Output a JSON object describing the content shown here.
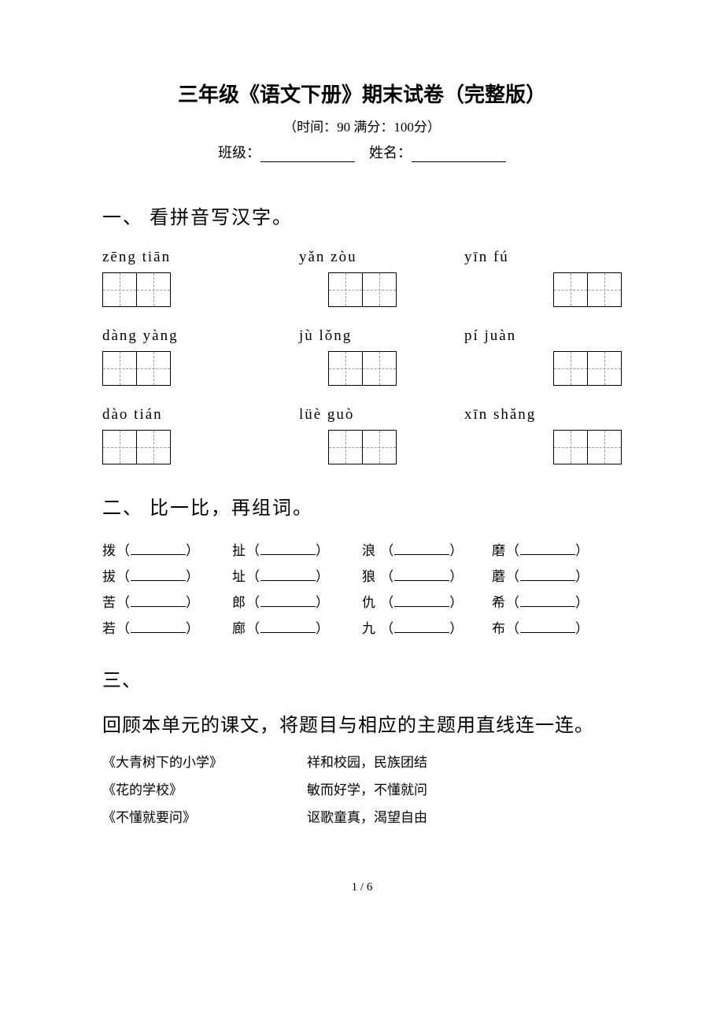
{
  "title": "三年级《语文下册》期末试卷（完整版）",
  "subtitle": "（时间：90   满分：100分）",
  "info": {
    "class_label": "班级：",
    "name_label": "姓名："
  },
  "section1": {
    "heading": "一、  看拼音写汉字。",
    "rows": [
      {
        "p1": "zēng  tiān",
        "p2": "yǎn  zòu",
        "p3": "yīn   fú"
      },
      {
        "p1": "dàng  yàng",
        "p2": "jù   lǒng",
        "p3": "pí   juàn"
      },
      {
        "p1": "dào   tián",
        "p2": "lüè  guò",
        "p3": "xīn  shǎng"
      }
    ]
  },
  "section2": {
    "heading": "二、  比一比，再组词。",
    "rows": [
      [
        "拨",
        "扯",
        "浪",
        "磨"
      ],
      [
        "拔",
        "址",
        "狼",
        "蘑"
      ],
      [
        "苦",
        "郎",
        "仇",
        "希"
      ],
      [
        "若",
        "廊",
        "九",
        "布"
      ]
    ]
  },
  "section3": {
    "heading": "三、",
    "instruction": "回顾本单元的课文，将题目与相应的主题用直线连一连。",
    "pairs": [
      {
        "left": "《大青树下的小学》",
        "right": "祥和校园，民族团结"
      },
      {
        "left": "《花的学校》",
        "right": "敏而好学，不懂就问"
      },
      {
        "left": "《不懂就要问》",
        "right": "讴歌童真，渴望自由"
      }
    ]
  },
  "footer": "1 / 6"
}
